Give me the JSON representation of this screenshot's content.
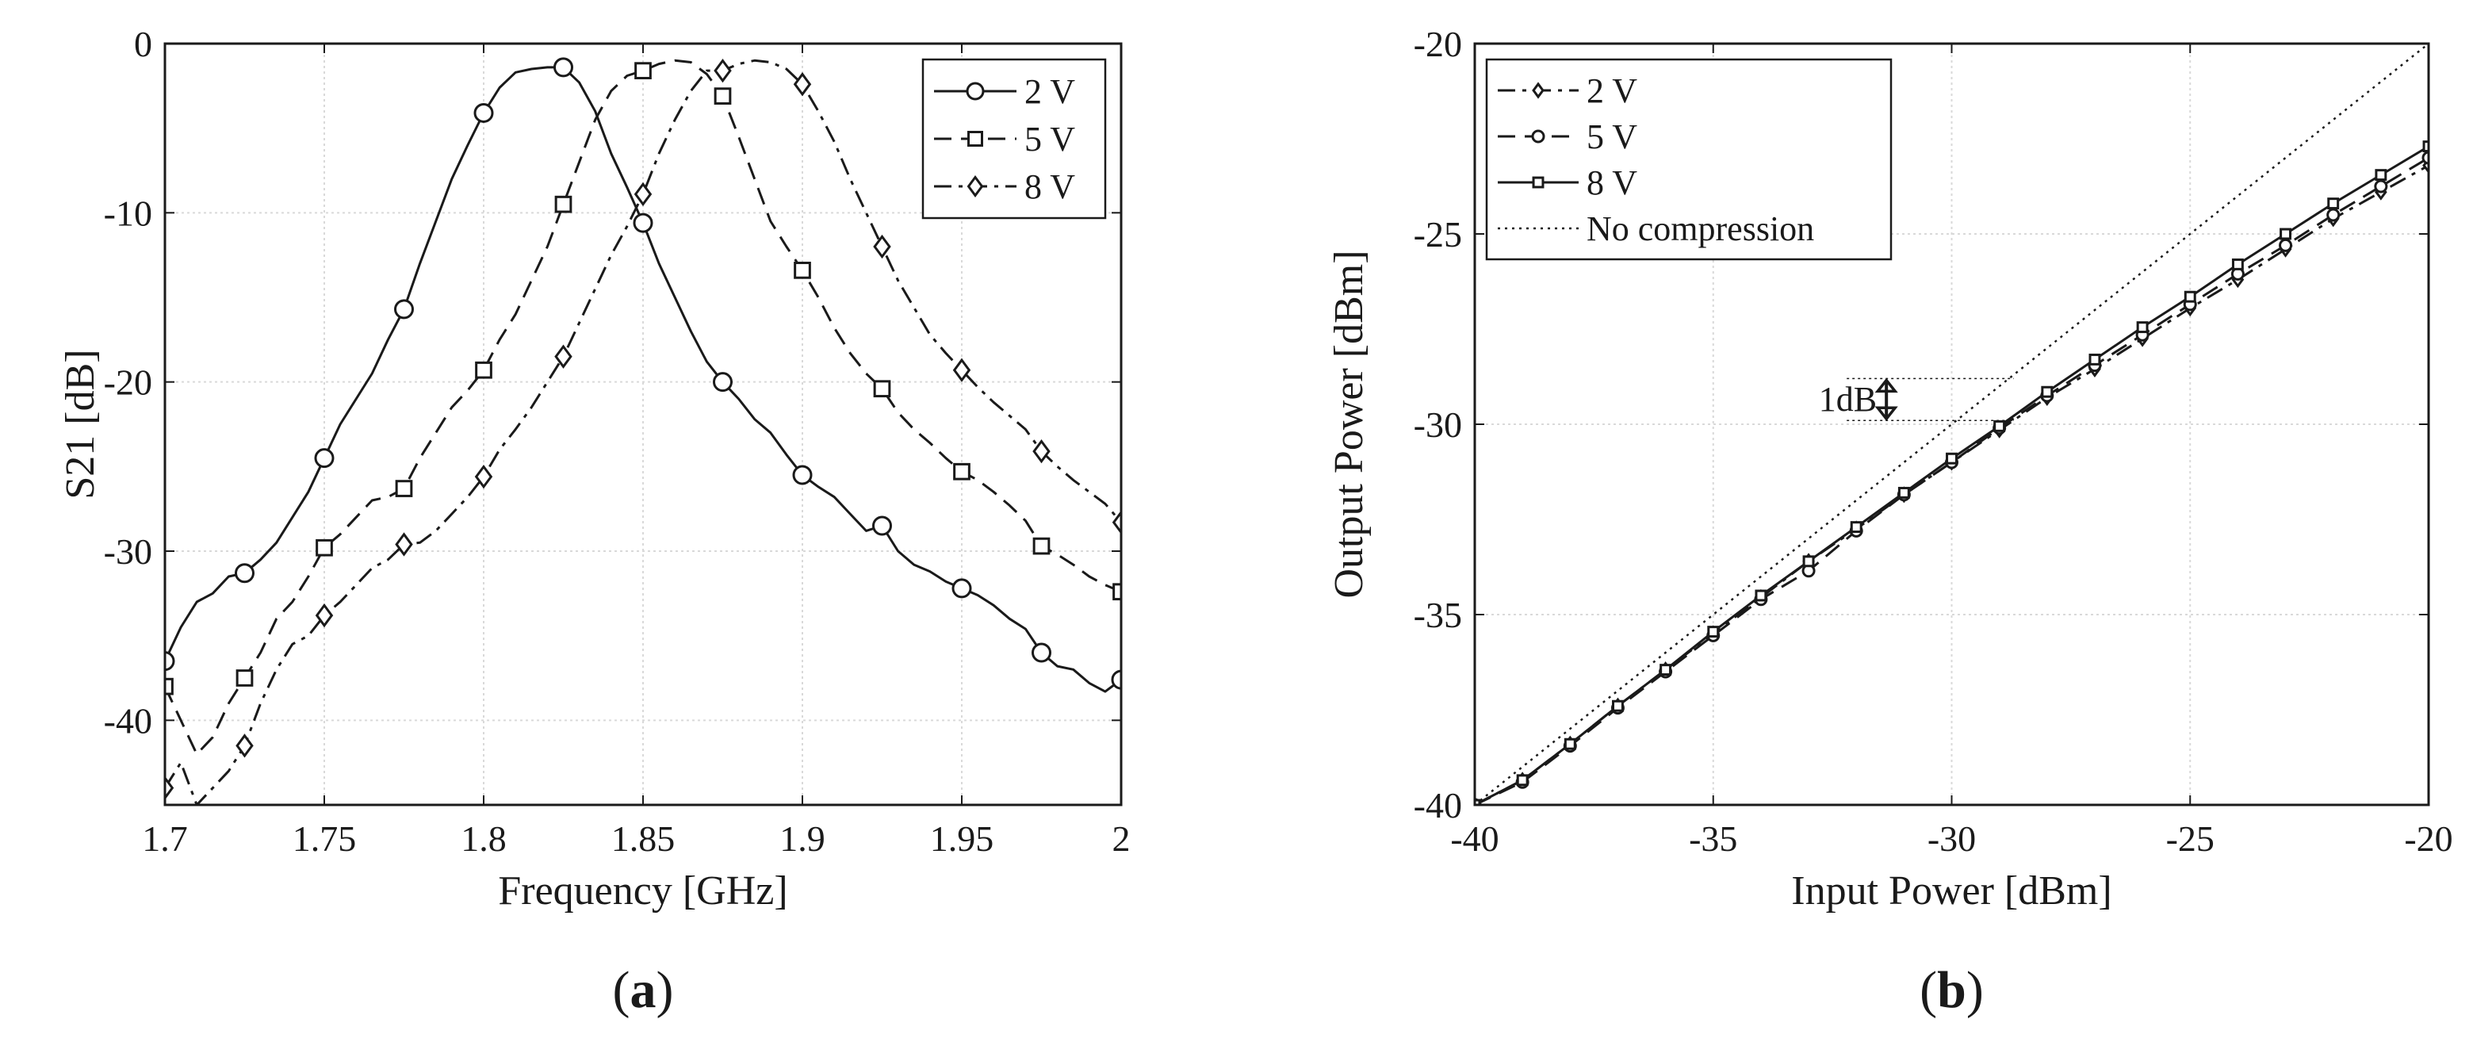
{
  "chart_data": [
    {
      "type": "line",
      "title": "",
      "xlabel": "Frequency [GHz]",
      "ylabel": "S21 [dB]",
      "xlim": [
        1.7,
        2.0
      ],
      "ylim": [
        -45,
        0
      ],
      "xticks": [
        1.7,
        1.75,
        1.8,
        1.85,
        1.9,
        1.95,
        2.0
      ],
      "xtick_labels": [
        "1.7",
        "1.75",
        "1.8",
        "1.85",
        "1.9",
        "1.95",
        "2"
      ],
      "yticks": [
        0,
        -10,
        -20,
        -30,
        -40
      ],
      "ytick_labels": [
        "0",
        "-10",
        "-20",
        "-30",
        "-40"
      ],
      "grid": true,
      "legend_position": "top-right",
      "panel_label": "a",
      "series": [
        {
          "name": "2 V",
          "marker": "circle",
          "dash": "solid",
          "x": [
            1.7,
            1.705,
            1.71,
            1.715,
            1.72,
            1.725,
            1.73,
            1.735,
            1.74,
            1.745,
            1.75,
            1.755,
            1.76,
            1.765,
            1.77,
            1.775,
            1.78,
            1.785,
            1.79,
            1.795,
            1.8,
            1.805,
            1.81,
            1.815,
            1.82,
            1.825,
            1.83,
            1.835,
            1.84,
            1.845,
            1.85,
            1.855,
            1.86,
            1.865,
            1.87,
            1.875,
            1.88,
            1.885,
            1.89,
            1.895,
            1.9,
            1.905,
            1.91,
            1.915,
            1.92,
            1.925,
            1.93,
            1.935,
            1.94,
            1.945,
            1.95,
            1.955,
            1.96,
            1.965,
            1.97,
            1.975,
            1.98,
            1.985,
            1.99,
            1.995,
            2.0
          ],
          "y": [
            -36.5,
            -34.5,
            -33.0,
            -32.5,
            -31.5,
            -31.3,
            -30.5,
            -29.5,
            -28.0,
            -26.5,
            -24.5,
            -22.5,
            -21.0,
            -19.5,
            -17.5,
            -15.7,
            -13.0,
            -10.5,
            -8.0,
            -6.0,
            -4.1,
            -2.6,
            -1.7,
            -1.5,
            -1.4,
            -1.4,
            -2.3,
            -4.0,
            -6.5,
            -8.5,
            -10.6,
            -13.0,
            -15.0,
            -17.0,
            -18.8,
            -20.0,
            -21.0,
            -22.2,
            -23.0,
            -24.3,
            -25.5,
            -26.2,
            -26.8,
            -27.8,
            -28.8,
            -28.5,
            -30.0,
            -30.8,
            -31.2,
            -31.8,
            -32.2,
            -32.6,
            -33.2,
            -34.0,
            -34.6,
            -36.0,
            -36.8,
            -37.0,
            -37.8,
            -38.3,
            -37.6
          ],
          "marker_x": [
            1.7,
            1.725,
            1.75,
            1.775,
            1.8,
            1.825,
            1.85,
            1.875,
            1.9,
            1.925,
            1.95,
            1.975,
            2.0
          ],
          "marker_y": [
            -36.5,
            -31.3,
            -24.5,
            -15.7,
            -4.1,
            -1.4,
            -10.6,
            -20.0,
            -25.5,
            -28.5,
            -32.2,
            -36.0,
            -37.6
          ]
        },
        {
          "name": "5 V",
          "marker": "square",
          "dash": "dashed",
          "x": [
            1.7,
            1.705,
            1.71,
            1.715,
            1.72,
            1.725,
            1.73,
            1.735,
            1.74,
            1.745,
            1.75,
            1.755,
            1.76,
            1.765,
            1.77,
            1.775,
            1.78,
            1.785,
            1.79,
            1.795,
            1.8,
            1.805,
            1.81,
            1.815,
            1.82,
            1.825,
            1.83,
            1.835,
            1.84,
            1.845,
            1.85,
            1.855,
            1.86,
            1.865,
            1.87,
            1.875,
            1.88,
            1.885,
            1.89,
            1.895,
            1.9,
            1.905,
            1.91,
            1.915,
            1.92,
            1.925,
            1.93,
            1.935,
            1.94,
            1.945,
            1.95,
            1.955,
            1.96,
            1.965,
            1.97,
            1.975,
            1.98,
            1.985,
            1.99,
            1.995,
            2.0
          ],
          "y": [
            -38.0,
            -40.0,
            -42.0,
            -41.0,
            -39.0,
            -37.5,
            -36.0,
            -34.0,
            -33.0,
            -31.5,
            -29.8,
            -29.0,
            -28.0,
            -27.0,
            -26.8,
            -26.3,
            -24.5,
            -23.0,
            -21.5,
            -20.5,
            -19.3,
            -17.5,
            -16.0,
            -14.0,
            -12.0,
            -9.5,
            -7.0,
            -4.5,
            -2.8,
            -1.9,
            -1.6,
            -1.2,
            -1.0,
            -1.1,
            -1.8,
            -3.1,
            -5.5,
            -8.0,
            -10.5,
            -12.0,
            -13.4,
            -15.0,
            -16.8,
            -18.3,
            -19.5,
            -20.4,
            -21.8,
            -22.8,
            -23.6,
            -24.5,
            -25.3,
            -25.8,
            -26.5,
            -27.3,
            -28.2,
            -29.7,
            -30.2,
            -30.8,
            -31.5,
            -32.0,
            -32.4
          ],
          "marker_x": [
            1.7,
            1.725,
            1.75,
            1.775,
            1.8,
            1.825,
            1.85,
            1.875,
            1.9,
            1.925,
            1.95,
            1.975,
            2.0
          ],
          "marker_y": [
            -38.0,
            -37.5,
            -29.8,
            -26.3,
            -19.3,
            -9.5,
            -1.6,
            -3.1,
            -13.4,
            -20.4,
            -25.3,
            -29.7,
            -32.4
          ]
        },
        {
          "name": "8 V",
          "marker": "diamond",
          "dash": "dashdot",
          "x": [
            1.7,
            1.705,
            1.71,
            1.715,
            1.72,
            1.725,
            1.73,
            1.735,
            1.74,
            1.745,
            1.75,
            1.755,
            1.76,
            1.765,
            1.77,
            1.775,
            1.78,
            1.785,
            1.79,
            1.795,
            1.8,
            1.805,
            1.81,
            1.815,
            1.82,
            1.825,
            1.83,
            1.835,
            1.84,
            1.845,
            1.85,
            1.855,
            1.86,
            1.865,
            1.87,
            1.875,
            1.88,
            1.885,
            1.89,
            1.895,
            1.9,
            1.905,
            1.91,
            1.915,
            1.92,
            1.925,
            1.93,
            1.935,
            1.94,
            1.945,
            1.95,
            1.955,
            1.96,
            1.965,
            1.97,
            1.975,
            1.98,
            1.985,
            1.99,
            1.995,
            2.0
          ],
          "y": [
            -44.0,
            -42.5,
            -45.0,
            -44.0,
            -43.0,
            -41.5,
            -39.0,
            -37.0,
            -35.5,
            -35.0,
            -33.8,
            -33.0,
            -32.0,
            -31.0,
            -30.5,
            -29.6,
            -29.5,
            -28.8,
            -27.8,
            -26.8,
            -25.6,
            -24.0,
            -22.8,
            -21.5,
            -20.0,
            -18.5,
            -16.5,
            -14.5,
            -12.5,
            -10.8,
            -8.9,
            -6.5,
            -4.5,
            -2.8,
            -1.6,
            -1.6,
            -1.2,
            -1.0,
            -1.1,
            -1.5,
            -2.4,
            -4.0,
            -5.8,
            -8.0,
            -10.0,
            -12.0,
            -14.0,
            -15.6,
            -17.2,
            -18.3,
            -19.3,
            -20.3,
            -21.2,
            -22.0,
            -22.8,
            -24.1,
            -25.0,
            -25.8,
            -26.5,
            -27.2,
            -28.3
          ],
          "marker_x": [
            1.7,
            1.725,
            1.75,
            1.775,
            1.8,
            1.825,
            1.85,
            1.875,
            1.9,
            1.925,
            1.95,
            1.975,
            2.0
          ],
          "marker_y": [
            -44.0,
            -41.5,
            -33.8,
            -29.6,
            -25.6,
            -18.5,
            -8.9,
            -1.6,
            -2.4,
            -12.0,
            -19.3,
            -24.1,
            -28.3
          ]
        }
      ]
    },
    {
      "type": "line",
      "title": "",
      "xlabel": "Input Power [dBm]",
      "ylabel": "Output Power [dBm]",
      "xlim": [
        -40,
        -20
      ],
      "ylim": [
        -40,
        -20
      ],
      "xticks": [
        -40,
        -35,
        -30,
        -25,
        -20
      ],
      "xtick_labels": [
        "-40",
        "-35",
        "-30",
        "-25",
        "-20"
      ],
      "yticks": [
        -20,
        -25,
        -30,
        -35,
        -40
      ],
      "ytick_labels": [
        "-20",
        "-25",
        "-30",
        "-35",
        "-40"
      ],
      "grid": true,
      "legend_position": "top-left",
      "panel_label": "b",
      "annotation": {
        "text": "1dB",
        "x": -29,
        "y_top": -28.8,
        "y_bottom": -29.9,
        "x_line_start": -32.2,
        "x_line_end": -28.7
      },
      "series": [
        {
          "name": "2 V",
          "marker": "diamond",
          "dash": "dashdot",
          "x": [
            -40,
            -39,
            -38,
            -37,
            -36,
            -35,
            -34,
            -33,
            -32,
            -31,
            -30,
            -29,
            -28,
            -27,
            -26,
            -25,
            -24,
            -23,
            -22,
            -21,
            -20
          ],
          "y": [
            -40.0,
            -39.35,
            -38.4,
            -37.4,
            -36.45,
            -35.5,
            -34.55,
            -33.6,
            -32.75,
            -31.85,
            -31.0,
            -30.15,
            -29.3,
            -28.55,
            -27.75,
            -26.95,
            -26.2,
            -25.4,
            -24.6,
            -23.9,
            -23.2
          ]
        },
        {
          "name": "5 V",
          "marker": "circle",
          "dash": "dashed",
          "x": [
            -40,
            -39,
            -38,
            -37,
            -36,
            -35,
            -34,
            -33,
            -32,
            -31,
            -30,
            -29,
            -28,
            -27,
            -26,
            -25,
            -24,
            -23,
            -22,
            -21,
            -20
          ],
          "y": [
            -40.0,
            -39.4,
            -38.45,
            -37.45,
            -36.5,
            -35.55,
            -34.6,
            -33.85,
            -32.8,
            -31.85,
            -31.0,
            -30.1,
            -29.25,
            -28.45,
            -27.65,
            -26.85,
            -26.05,
            -25.3,
            -24.5,
            -23.75,
            -23.0
          ]
        },
        {
          "name": "8 V",
          "marker": "square",
          "dash": "solid",
          "x": [
            -40,
            -39,
            -38,
            -37,
            -36,
            -35,
            -34,
            -33,
            -32,
            -31,
            -30,
            -29,
            -28,
            -27,
            -26,
            -25,
            -24,
            -23,
            -22,
            -21,
            -20
          ],
          "y": [
            -40.0,
            -39.35,
            -38.4,
            -37.4,
            -36.45,
            -35.45,
            -34.5,
            -33.6,
            -32.7,
            -31.8,
            -30.9,
            -30.05,
            -29.15,
            -28.3,
            -27.45,
            -26.65,
            -25.8,
            -25.0,
            -24.2,
            -23.45,
            -22.7
          ]
        },
        {
          "name": "No compression",
          "marker": "none",
          "dash": "dotted",
          "x": [
            -40,
            -20
          ],
          "y": [
            -40,
            -20
          ]
        }
      ]
    }
  ]
}
